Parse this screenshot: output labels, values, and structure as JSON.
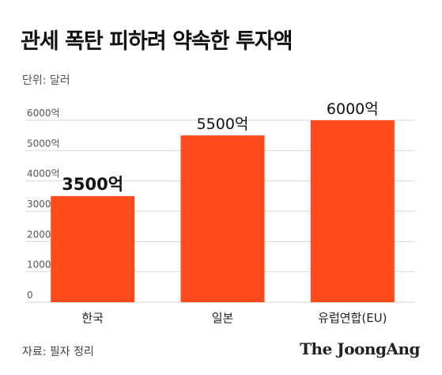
{
  "title": "관세 폭탄 피하려 약속한 투자액",
  "unit_label": "단위: 달러",
  "source": "자료: 필자 정리",
  "brand": "The JoongAng",
  "chart_data": {
    "type": "bar",
    "categories": [
      "한국",
      "일본",
      "유럽연합(EU)"
    ],
    "values": [
      3500,
      5500,
      6000
    ],
    "data_labels": [
      "3500억",
      "5500억",
      "6000억"
    ],
    "ylim": [
      0,
      6000
    ],
    "yticks": [
      0,
      1000,
      2000,
      3000,
      4000,
      5000,
      6000
    ],
    "ytick_labels": [
      "0",
      "1000억",
      "2000억",
      "3000억",
      "4000억",
      "5000억",
      "6000억"
    ],
    "grid": true,
    "bar_color": "#ff4a1c",
    "grid_color": "#d9d9d9",
    "highlight_label_index": 0
  }
}
